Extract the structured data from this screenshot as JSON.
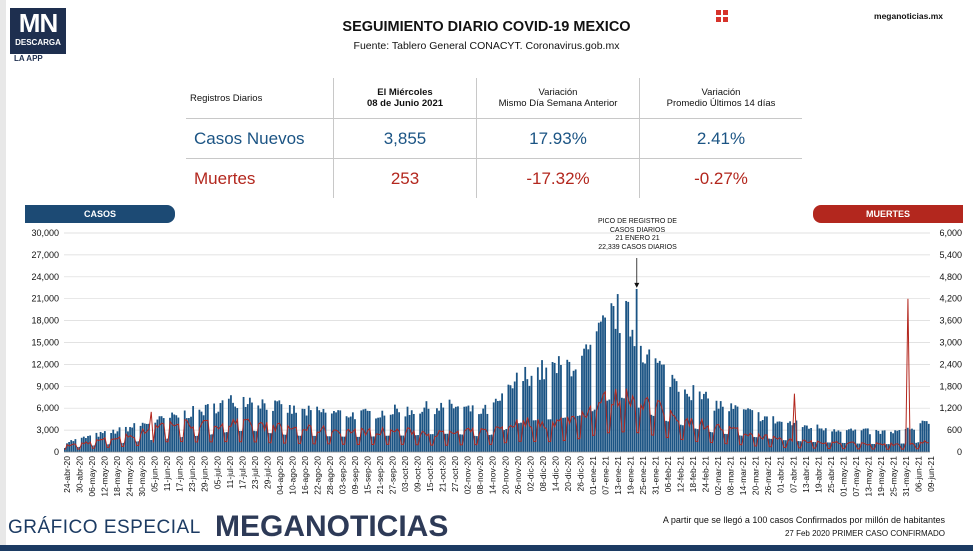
{
  "logo": {
    "mark": "MN",
    "sub": "DESCARGA",
    "app": "LA APP"
  },
  "header": {
    "title": "SEGUIMIENTO DIARIO COVID-19 MEXICO",
    "subtitle": "Fuente: Tablero General CONACYT. Coronavirus.gob.mx",
    "site": "meganoticias.mx",
    "menu_icon": "grid-icon"
  },
  "table": {
    "col0": "Registros Diarios",
    "col1_line1": "El Miércoles",
    "col1_line2": "08 de Junio 2021",
    "col2_line1": "Variación",
    "col2_line2": "Mismo Día Semana Anterior",
    "col3_line1": "Variación",
    "col3_line2": "Promedio Últimos 14 días",
    "rows": [
      {
        "label": "Casos Nuevos",
        "value": "3,855",
        "var_week": "17.93%",
        "var_avg": "2.41%"
      },
      {
        "label": "Muertes",
        "value": "253",
        "var_week": "-17.32%",
        "var_avg": "-0.27%"
      }
    ]
  },
  "legend": {
    "casos": "CASOS",
    "muertes": "MUERTES"
  },
  "annotation": {
    "line1": "PICO DE REGISTRO DE",
    "line2": "CASOS DIARIOS",
    "line3": "21 ENERO 21",
    "line4": "22,339 CASOS DIARIOS"
  },
  "chart_data": {
    "type": "bar",
    "x_start": "2020-04-24",
    "x_end": "2021-06-09",
    "ylim_left": [
      0,
      30000
    ],
    "ylim_right": [
      0,
      6000
    ],
    "yticks_left": [
      "0",
      "3,000",
      "6,000",
      "9,000",
      "12,000",
      "15,000",
      "18,000",
      "21,000",
      "24,000",
      "27,000",
      "30,000"
    ],
    "yticks_right": [
      "0",
      "600",
      "1,200",
      "1,800",
      "2,400",
      "3,000",
      "3,600",
      "4,200",
      "4,800",
      "5,400",
      "6,000"
    ],
    "xticks": [
      "24-abr-20",
      "30-abr-20",
      "06-may-20",
      "12-may-20",
      "18-may-20",
      "24-may-20",
      "30-may-20",
      "05-jun-20",
      "11-jun-20",
      "17-jun-20",
      "23-jun-20",
      "29-jun-20",
      "05-jul-20",
      "11-jul-20",
      "17-jul-20",
      "23-jul-20",
      "29-jul-20",
      "04-ago-20",
      "10-ago-20",
      "16-ago-20",
      "22-ago-20",
      "28-ago-20",
      "03-sep-20",
      "09-sep-20",
      "15-sep-20",
      "21-sep-20",
      "27-sep-20",
      "03-oct-20",
      "09-oct-20",
      "15-oct-20",
      "21-oct-20",
      "27-oct-20",
      "02-nov-20",
      "08-nov-20",
      "14-nov-20",
      "20-nov-20",
      "26-nov-20",
      "02-dic-20",
      "08-dic-20",
      "14-dic-20",
      "20-dic-20",
      "26-dic-20",
      "01-ene-21",
      "07-ene-21",
      "13-ene-21",
      "19-ene-21",
      "25-ene-21",
      "31-ene-21",
      "06-feb-21",
      "12-feb-21",
      "18-feb-21",
      "24-feb-21",
      "02-mar-21",
      "08-mar-21",
      "14-mar-21",
      "20-mar-21",
      "26-mar-21",
      "01-abr-21",
      "07-abr-21",
      "13-abr-21",
      "19-abr-21",
      "25-abr-21",
      "01-may-21",
      "07-may-21",
      "13-may-21",
      "19-may-21",
      "25-may-21",
      "31-may-21",
      "06-jun-21",
      "09-jun-21"
    ],
    "series": [
      {
        "name": "CASOS",
        "axis": "left",
        "color": "#1b5484",
        "weekly_avg": [
          1200,
          1500,
          1900,
          2200,
          2500,
          2900,
          3300,
          3700,
          4000,
          4400,
          4800,
          5000,
          5500,
          6100,
          6400,
          6500,
          5900,
          5500,
          5100,
          4900,
          4900,
          4800,
          4700,
          4600,
          4600,
          4800,
          5000,
          5000,
          5100,
          5400,
          5500,
          5600,
          5200,
          4800,
          5200,
          6500,
          8500,
          9500,
          9800,
          10000,
          10500,
          11000,
          12000,
          15000,
          17000,
          16000,
          13000,
          11000,
          9500,
          8500,
          7500,
          6500,
          5800,
          5400,
          5000,
          4600,
          4200,
          3700,
          3500,
          3200,
          3000,
          2900,
          2800,
          2600,
          2500,
          2400,
          2400,
          2600,
          2800,
          3855
        ],
        "peak": {
          "date": "2021-01-21",
          "value": 22339
        }
      },
      {
        "name": "MUERTES",
        "axis": "right",
        "color": "#b3271e",
        "weekly_avg": [
          150,
          200,
          250,
          300,
          350,
          400,
          450,
          650,
          700,
          720,
          700,
          680,
          700,
          710,
          700,
          700,
          650,
          620,
          600,
          580,
          560,
          560,
          530,
          520,
          510,
          520,
          520,
          520,
          500,
          480,
          460,
          470,
          500,
          510,
          520,
          620,
          720,
          750,
          700,
          720,
          800,
          900,
          1100,
          1300,
          1350,
          1400,
          1300,
          1150,
          1000,
          900,
          750,
          700,
          620,
          560,
          500,
          420,
          380,
          330,
          300,
          280,
          260,
          240,
          230,
          220,
          210,
          200,
          190,
          200,
          220,
          253
        ]
      }
    ],
    "grid": true
  },
  "footer": {
    "left": "GRÁFICO ESPECIAL",
    "brand": "MEGANOTICIAS",
    "note1": "A partir que se llegó a 100 casos Confirmados por millón de habitantes",
    "note2": "27 Feb 2020 PRIMER CASO CONFIRMADO"
  }
}
